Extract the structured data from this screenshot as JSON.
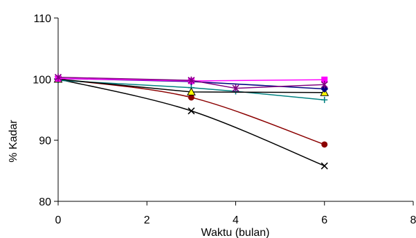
{
  "chart_data": {
    "type": "line",
    "xlabel": "Waktu (bulan)",
    "ylabel": "% Kadar",
    "xlim": [
      0,
      8
    ],
    "ylim": [
      80,
      110
    ],
    "xticks": [
      0,
      2,
      4,
      6,
      8
    ],
    "yticks": [
      80,
      90,
      100,
      110
    ],
    "grid": false,
    "legend": "none",
    "series": [
      {
        "color": "#000000",
        "marker": "x",
        "smooth": true,
        "points": [
          [
            0,
            100.0
          ],
          [
            3,
            94.8
          ],
          [
            6,
            85.8
          ]
        ]
      },
      {
        "color": "#8b0000",
        "marker": "circle",
        "smooth": true,
        "points": [
          [
            0,
            100.0
          ],
          [
            3,
            97.0
          ],
          [
            6,
            89.3
          ]
        ]
      },
      {
        "color": "#008080",
        "marker": "plus",
        "smooth": false,
        "points": [
          [
            0,
            99.8
          ],
          [
            3,
            98.6
          ],
          [
            4,
            98.0
          ],
          [
            6,
            96.6
          ]
        ]
      },
      {
        "color": "#000000",
        "marker": "triangle",
        "marker_fill": "#ffff00",
        "smooth": false,
        "points": [
          [
            0,
            100.0
          ],
          [
            3,
            97.9
          ],
          [
            6,
            97.8
          ]
        ]
      },
      {
        "color": "#000080",
        "marker": "diamond",
        "smooth": false,
        "points": [
          [
            0,
            100.1
          ],
          [
            3,
            99.6
          ],
          [
            6,
            98.4
          ]
        ]
      },
      {
        "color": "#ff00ff",
        "marker": "square",
        "smooth": false,
        "points": [
          [
            0,
            100.1
          ],
          [
            3,
            99.7
          ],
          [
            6,
            99.9
          ]
        ]
      },
      {
        "color": "#800080",
        "marker": "asterisk",
        "smooth": false,
        "points": [
          [
            0,
            100.3
          ],
          [
            3,
            99.8
          ],
          [
            4,
            98.5
          ],
          [
            6,
            99.1
          ]
        ]
      }
    ]
  }
}
